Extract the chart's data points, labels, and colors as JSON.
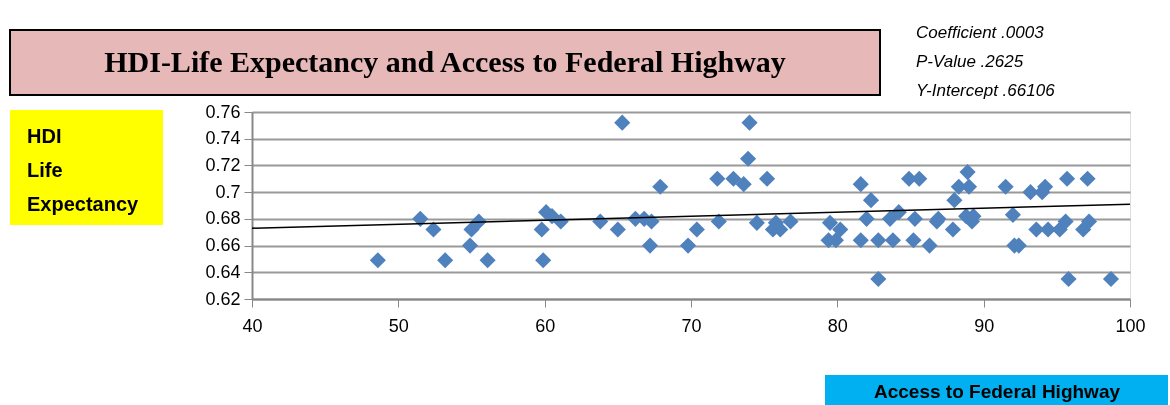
{
  "chart_data": {
    "type": "scatter",
    "title": "HDI-Life Expectancy and Access to Federal Highway",
    "xlabel": "Access to Federal Highway",
    "ylabel": "HDI Life Expectancy",
    "annotations": [
      "Coefficient      .0003",
      "P-Value            .2625",
      "Y-Intercept      .66106"
    ],
    "xlim": [
      40,
      100
    ],
    "xticks": [
      40,
      50,
      60,
      70,
      80,
      90,
      100
    ],
    "ylim": [
      0.62,
      0.76
    ],
    "yticks": [
      0.62,
      0.64,
      0.66,
      0.68,
      0.7,
      0.72,
      0.74,
      0.76
    ],
    "grid": "y",
    "legend": false,
    "marker": "diamond",
    "series": [
      {
        "type": "scatter",
        "color": "#4f81bd",
        "x": [
          48.6,
          51.5,
          52.4,
          53.2,
          54.9,
          55.0,
          55.5,
          56.1,
          59.9,
          59.8,
          60.1,
          60.5,
          61.1,
          63.8,
          65.0,
          65.3,
          66.2,
          66.8,
          67.2,
          67.3,
          67.9,
          69.8,
          70.4,
          71.8,
          71.9,
          72.9,
          73.6,
          74.0,
          73.9,
          74.5,
          75.2,
          75.6,
          76.1,
          75.8,
          76.8,
          79.4,
          79.5,
          79.9,
          80.2,
          81.6,
          81.6,
          82.0,
          82.3,
          82.8,
          82.8,
          83.8,
          84.2,
          83.6,
          84.9,
          85.2,
          85.3,
          85.6,
          86.3,
          86.8,
          86.9,
          87.9,
          88.0,
          88.3,
          88.9,
          88.8,
          89.0,
          89.2,
          89.3,
          91.5,
          92.0,
          92.1,
          92.4,
          93.2,
          93.6,
          94.0,
          94.2,
          94.4,
          95.2,
          95.6,
          95.7,
          95.8,
          96.8,
          97.1,
          97.2,
          98.7
        ],
        "values": [
          0.649,
          0.68,
          0.672,
          0.649,
          0.66,
          0.672,
          0.678,
          0.649,
          0.649,
          0.672,
          0.685,
          0.682,
          0.678,
          0.678,
          0.672,
          0.752,
          0.68,
          0.68,
          0.66,
          0.678,
          0.704,
          0.66,
          0.672,
          0.71,
          0.678,
          0.71,
          0.706,
          0.752,
          0.725,
          0.677,
          0.71,
          0.672,
          0.672,
          0.677,
          0.678,
          0.664,
          0.677,
          0.664,
          0.672,
          0.706,
          0.664,
          0.68,
          0.694,
          0.635,
          0.664,
          0.664,
          0.685,
          0.68,
          0.71,
          0.664,
          0.68,
          0.71,
          0.66,
          0.678,
          0.68,
          0.672,
          0.694,
          0.704,
          0.715,
          0.682,
          0.704,
          0.678,
          0.682,
          0.704,
          0.683,
          0.66,
          0.66,
          0.7,
          0.672,
          0.7,
          0.704,
          0.672,
          0.672,
          0.678,
          0.71,
          0.635,
          0.672,
          0.71,
          0.678,
          0.635
        ]
      },
      {
        "type": "line",
        "marker": "none",
        "color": "#000000",
        "x": [
          40,
          100
        ],
        "values": [
          0.673,
          0.691
        ]
      }
    ]
  }
}
